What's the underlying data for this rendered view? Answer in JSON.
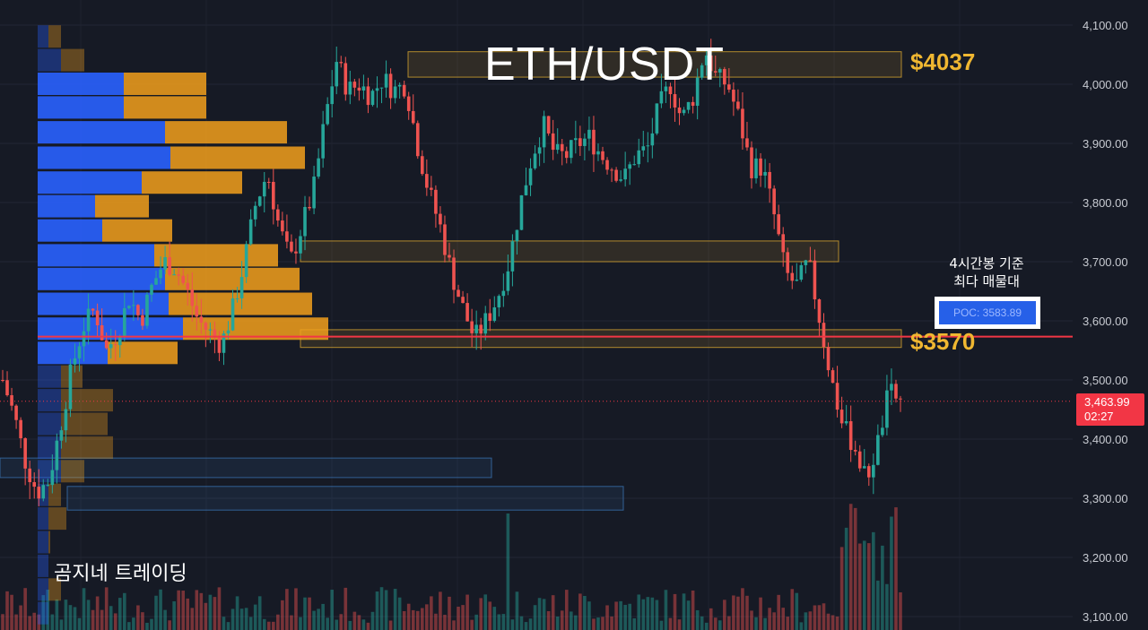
{
  "title": "ETH/USDT",
  "watermark": "곰지네 트레이딩",
  "levels": {
    "upper_label": "$4037",
    "lower_label": "$3570"
  },
  "poc": {
    "note_line1": "4시간봉 기준",
    "note_line2": "최다 매물대",
    "label": "POC: 3583.89",
    "value": 3583.89
  },
  "last_price": {
    "value": "3,463.99",
    "countdown": "02:27"
  },
  "colors": {
    "background": "#161a25",
    "up": "#26a69a",
    "down": "#ef5350",
    "volume_profile_up": "#2962ff",
    "volume_profile_down": "#f2a01c",
    "level_box": "#f0b731",
    "poc_line": "#f23645"
  },
  "chart_data": {
    "type": "candlestick",
    "title": "ETH/USDT",
    "ylim": [
      3090,
      4120
    ],
    "y_ticks": [
      "4,100.00",
      "4,000.00",
      "3,900.00",
      "3,800.00",
      "3,700.00",
      "3,600.00",
      "3,500.00",
      "3,400.00",
      "3,300.00",
      "3,200.00",
      "3,100.00"
    ],
    "y_tick_values": [
      4100,
      4000,
      3900,
      3800,
      3700,
      3600,
      3500,
      3400,
      3300,
      3200,
      3100
    ],
    "grid": true,
    "price_path": [
      3500,
      3440,
      3360,
      3310,
      3330,
      3420,
      3520,
      3590,
      3620,
      3550,
      3580,
      3640,
      3600,
      3660,
      3700,
      3690,
      3650,
      3600,
      3580,
      3560,
      3620,
      3700,
      3800,
      3850,
      3760,
      3700,
      3760,
      3820,
      3940,
      4040,
      3990,
      4000,
      3980,
      4010,
      3990,
      4000,
      3900,
      3820,
      3760,
      3680,
      3620,
      3570,
      3600,
      3640,
      3700,
      3800,
      3880,
      3930,
      3880,
      3880,
      3900,
      3910,
      3880,
      3860,
      3840,
      3880,
      3890,
      3960,
      4000,
      3940,
      3980,
      4060,
      4010,
      4000,
      3940,
      3860,
      3860,
      3780,
      3680,
      3660,
      3700,
      3600,
      3500,
      3420,
      3390,
      3330,
      3390,
      3480,
      3464
    ],
    "volume_profile": [
      {
        "price": 4080,
        "up": 12,
        "down": 14
      },
      {
        "price": 4040,
        "up": 26,
        "down": 26
      },
      {
        "price": 4000,
        "up": 96,
        "down": 92
      },
      {
        "price": 3960,
        "up": 96,
        "down": 92
      },
      {
        "price": 3918,
        "up": 142,
        "down": 136
      },
      {
        "price": 3875,
        "up": 148,
        "down": 150
      },
      {
        "price": 3833,
        "up": 116,
        "down": 112
      },
      {
        "price": 3793,
        "up": 64,
        "down": 60
      },
      {
        "price": 3752,
        "up": 72,
        "down": 78
      },
      {
        "price": 3710,
        "up": 130,
        "down": 138
      },
      {
        "price": 3670,
        "up": 142,
        "down": 150
      },
      {
        "price": 3628,
        "up": 146,
        "down": 160
      },
      {
        "price": 3586,
        "up": 162,
        "down": 162
      },
      {
        "price": 3545,
        "up": 78,
        "down": 78
      },
      {
        "price": 3505,
        "up": 26,
        "down": 24
      },
      {
        "price": 3465,
        "up": 26,
        "down": 58
      },
      {
        "price": 3425,
        "up": 26,
        "down": 52
      },
      {
        "price": 3385,
        "up": 26,
        "down": 58
      },
      {
        "price": 3345,
        "up": 26,
        "down": 26
      },
      {
        "price": 3305,
        "up": 12,
        "down": 14
      },
      {
        "price": 3265,
        "up": 12,
        "down": 20
      },
      {
        "price": 3225,
        "up": 12,
        "down": 2
      },
      {
        "price": 3185,
        "up": 12,
        "down": 0
      },
      {
        "price": 3145,
        "up": 12,
        "down": 14
      },
      {
        "price": 3105,
        "up": 12,
        "down": 0
      }
    ],
    "zones": [
      {
        "label": "$4037",
        "from": 4012,
        "to": 4055,
        "color": "#f0b731"
      },
      {
        "label": "",
        "from": 3700,
        "to": 3735,
        "color": "#f0b731"
      },
      {
        "label": "$3570",
        "from": 3555,
        "to": 3585,
        "color": "#f0b731"
      },
      {
        "label": "",
        "from": 3335,
        "to": 3368,
        "color": "#3d7cc0"
      },
      {
        "label": "",
        "from": 3280,
        "to": 3320,
        "color": "#3d7cc0"
      }
    ],
    "poc_price": 3583.89,
    "last_price": 3463.99
  }
}
